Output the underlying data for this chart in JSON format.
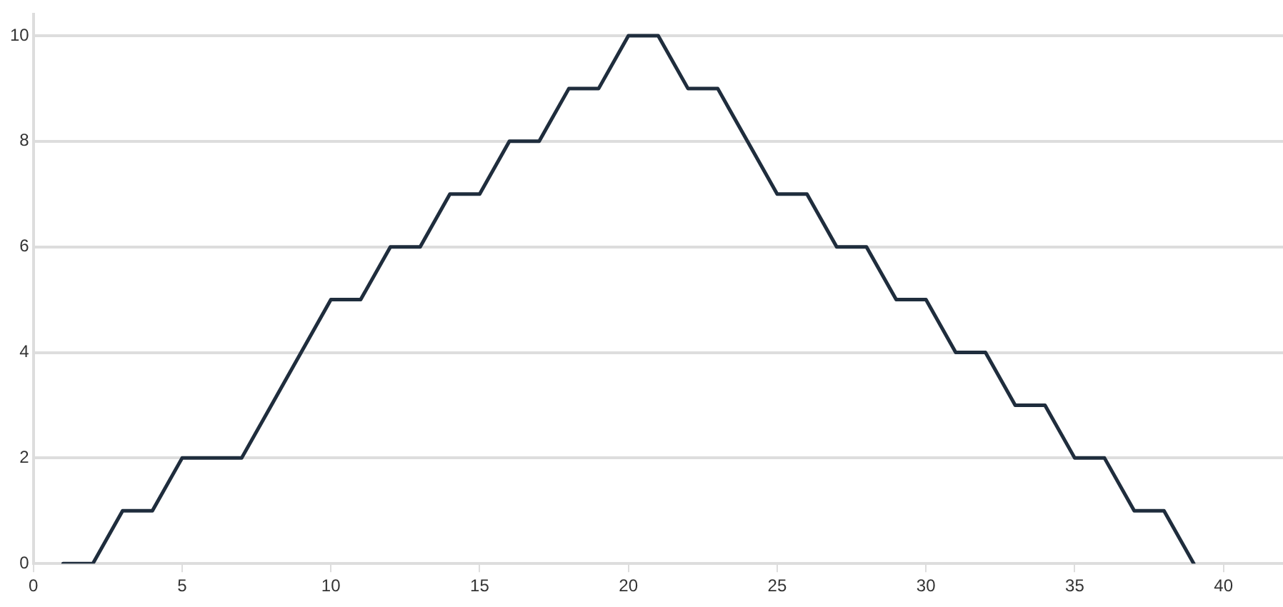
{
  "chart_data": {
    "type": "line",
    "x": [
      1,
      2,
      3,
      4,
      5,
      6,
      7,
      8,
      9,
      10,
      11,
      12,
      13,
      14,
      15,
      16,
      17,
      18,
      19,
      20,
      21,
      22,
      23,
      24,
      25,
      26,
      27,
      28,
      29,
      30,
      31,
      32,
      33,
      34,
      35,
      36,
      37,
      38,
      39
    ],
    "series": [
      {
        "color": "#1f2d3d",
        "values": [
          0,
          0,
          1,
          1,
          2,
          2,
          2,
          3,
          4,
          5,
          5,
          6,
          6,
          7,
          7,
          8,
          8,
          9,
          9,
          10,
          10,
          9,
          9,
          8,
          7,
          7,
          6,
          6,
          5,
          5,
          4,
          4,
          3,
          3,
          2,
          2,
          1,
          1,
          0
        ]
      }
    ],
    "xlim": [
      0,
      42
    ],
    "xticks": [
      0,
      5,
      10,
      15,
      20,
      25,
      30,
      35,
      40
    ],
    "ylim": [
      0,
      10.4
    ],
    "yticks": [
      0,
      2,
      4,
      6,
      8,
      10
    ],
    "grid": "y",
    "legend": false,
    "marker": "none",
    "line_style": "solid"
  }
}
